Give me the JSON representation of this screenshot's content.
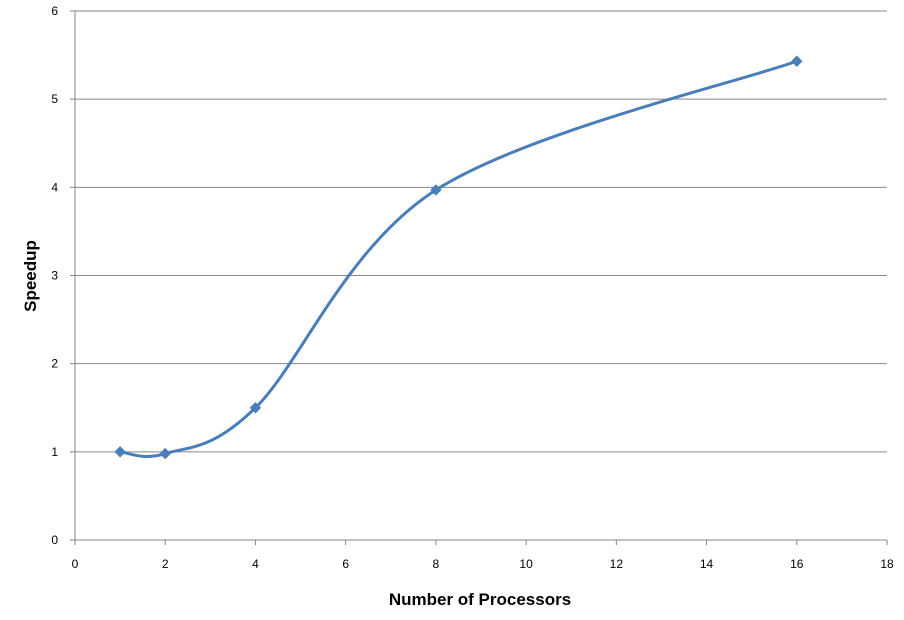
{
  "chart_data": {
    "type": "line",
    "title": "",
    "xlabel": "Number of Processors",
    "ylabel": "Speedup",
    "xlim": [
      0,
      18
    ],
    "ylim": [
      0,
      6
    ],
    "x_ticks": [
      0,
      2,
      4,
      6,
      8,
      10,
      12,
      14,
      16,
      18
    ],
    "y_ticks": [
      0,
      1,
      2,
      3,
      4,
      5,
      6
    ],
    "grid": "horizontal",
    "legend": "none",
    "smoothed": true,
    "marker": "diamond",
    "series": [
      {
        "color": "#4a7ebb",
        "points": [
          {
            "x": 1,
            "y": 1.0
          },
          {
            "x": 2,
            "y": 0.98
          },
          {
            "x": 4,
            "y": 1.5
          },
          {
            "x": 8,
            "y": 3.97
          },
          {
            "x": 16,
            "y": 5.43
          }
        ]
      }
    ]
  }
}
